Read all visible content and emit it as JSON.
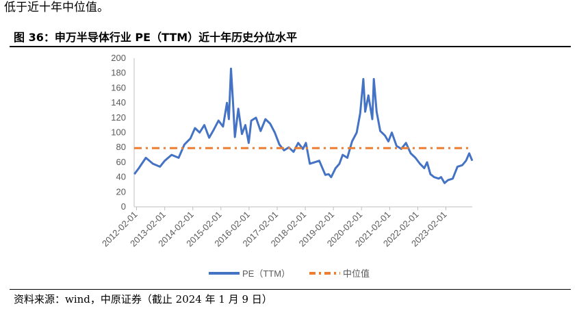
{
  "intro_text": "低于近十年中位值。",
  "figure": {
    "title": "图 36：申万半导体行业 PE（TTM）近十年历史分位水平",
    "source": "资料来源：wind，中原证券（截止 2024 年 1 月 9 日）"
  },
  "chart_data": {
    "type": "line",
    "ylim": [
      0,
      200
    ],
    "yticks": [
      0,
      20,
      40,
      60,
      80,
      100,
      120,
      140,
      160,
      180,
      200
    ],
    "xlim": [
      "2012-01-01",
      "2024-01-09"
    ],
    "x_tick_labels": [
      "2012-02-01",
      "2013-02-01",
      "2014-02-01",
      "2015-02-01",
      "2016-02-01",
      "2017-02-01",
      "2018-02-01",
      "2019-02-01",
      "2020-02-01",
      "2021-02-01",
      "2022-02-01",
      "2023-02-01"
    ],
    "grid": false,
    "legend_position": "bottom",
    "series": [
      {
        "name": "PE（TTM）",
        "color": "#4472C4",
        "style": "solid",
        "x": [
          "2012-01-04",
          "2012-03-01",
          "2012-06-01",
          "2012-09-01",
          "2012-12-01",
          "2013-02-01",
          "2013-05-01",
          "2013-08-01",
          "2013-10-15",
          "2014-01-01",
          "2014-03-01",
          "2014-05-01",
          "2014-07-01",
          "2014-09-01",
          "2014-11-01",
          "2015-01-01",
          "2015-03-01",
          "2015-04-20",
          "2015-05-15",
          "2015-06-12",
          "2015-07-08",
          "2015-08-01",
          "2015-09-15",
          "2015-11-01",
          "2015-12-15",
          "2016-01-28",
          "2016-03-01",
          "2016-05-01",
          "2016-07-01",
          "2016-09-01",
          "2016-11-01",
          "2017-01-01",
          "2017-03-01",
          "2017-05-01",
          "2017-07-01",
          "2017-09-01",
          "2017-11-01",
          "2018-01-01",
          "2018-02-09",
          "2018-04-01",
          "2018-06-01",
          "2018-08-01",
          "2018-10-19",
          "2018-12-01",
          "2019-01-03",
          "2019-03-01",
          "2019-04-20",
          "2019-06-01",
          "2019-08-01",
          "2019-10-01",
          "2019-12-01",
          "2020-01-15",
          "2020-02-25",
          "2020-03-20",
          "2020-05-01",
          "2020-06-20",
          "2020-07-10",
          "2020-08-15",
          "2020-10-01",
          "2020-12-01",
          "2021-01-15",
          "2021-03-01",
          "2021-05-01",
          "2021-07-01",
          "2021-09-01",
          "2021-11-01",
          "2022-01-01",
          "2022-03-01",
          "2022-04-26",
          "2022-06-01",
          "2022-07-15",
          "2022-09-01",
          "2022-10-31",
          "2022-12-01",
          "2023-01-15",
          "2023-03-01",
          "2023-05-01",
          "2023-07-01",
          "2023-09-01",
          "2023-10-20",
          "2023-12-01",
          "2024-01-09"
        ],
        "y": [
          44,
          52,
          66,
          58,
          54,
          62,
          70,
          66,
          84,
          92,
          106,
          100,
          110,
          93,
          104,
          116,
          108,
          140,
          118,
          186,
          140,
          94,
          132,
          98,
          110,
          86,
          116,
          120,
          102,
          118,
          112,
          100,
          84,
          76,
          80,
          74,
          86,
          78,
          86,
          58,
          60,
          62,
          43,
          44,
          40,
          52,
          58,
          70,
          66,
          88,
          100,
          126,
          172,
          128,
          150,
          118,
          172,
          128,
          102,
          96,
          88,
          100,
          82,
          78,
          86,
          72,
          66,
          58,
          52,
          60,
          44,
          40,
          38,
          40,
          32,
          36,
          38,
          54,
          56,
          62,
          72,
          62
        ]
      },
      {
        "name": "中位值",
        "color": "#ED7D31",
        "style": "dash-dot",
        "value": 79
      }
    ]
  }
}
